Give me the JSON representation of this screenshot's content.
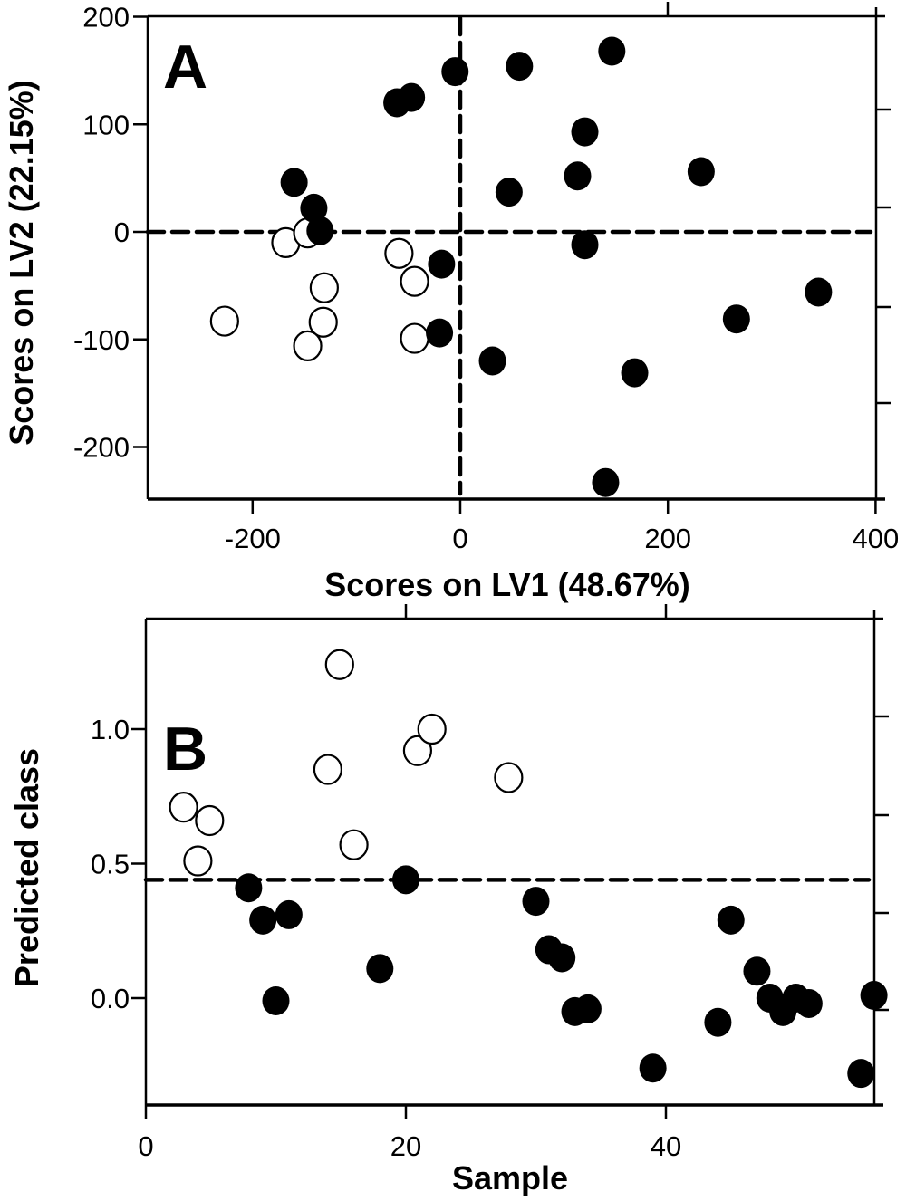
{
  "chart_data": [
    {
      "panel": "A",
      "type": "scatter",
      "title": "",
      "panel_label": "A",
      "xlabel": "Scores on LV1 (48.67%)",
      "ylabel": "Scores on LV2 (22.15%)",
      "xlim": [
        -300,
        400
      ],
      "ylim": [
        -250,
        200
      ],
      "xticks": [
        -200,
        0,
        200,
        400
      ],
      "xtick_labels": [
        "-200",
        "0",
        "200",
        "400"
      ],
      "yticks": [
        -200,
        -100,
        0,
        100,
        200
      ],
      "ytick_labels": [
        "-200",
        "-100",
        "0",
        "100",
        "200"
      ],
      "grid": false,
      "reference_lines": {
        "x": 0,
        "y": 0,
        "style": "dashed"
      },
      "series": [
        {
          "name": "open",
          "marker": "open-circle",
          "color": "#000000",
          "points": [
            [
              -168,
              -10
            ],
            [
              -147,
              -1
            ],
            [
              -227,
              -83
            ],
            [
              -131,
              -52
            ],
            [
              -132,
              -84
            ],
            [
              -147,
              -106
            ],
            [
              -59,
              -20
            ],
            [
              -44,
              -46
            ],
            [
              -44,
              -99
            ]
          ]
        },
        {
          "name": "filled",
          "marker": "filled-circle",
          "color": "#000000",
          "points": [
            [
              -160,
              46
            ],
            [
              -141,
              22
            ],
            [
              -135,
              1
            ],
            [
              -18,
              -30
            ],
            [
              -20,
              -94
            ],
            [
              -61,
              120
            ],
            [
              -47,
              125
            ],
            [
              -5,
              149
            ],
            [
              57,
              154
            ],
            [
              146,
              168
            ],
            [
              120,
              93
            ],
            [
              113,
              52
            ],
            [
              47,
              37
            ],
            [
              232,
              56
            ],
            [
              120,
              -12
            ],
            [
              31,
              -120
            ],
            [
              168,
              -131
            ],
            [
              266,
              -81
            ],
            [
              345,
              -56
            ],
            [
              140,
              -233
            ]
          ]
        }
      ]
    },
    {
      "panel": "B",
      "type": "scatter",
      "title": "",
      "panel_label": "B",
      "xlabel": "Sample",
      "ylabel": "Predicted class",
      "xlim": [
        0,
        56
      ],
      "ylim": [
        -0.4,
        1.41
      ],
      "xticks": [
        0,
        20,
        40
      ],
      "xtick_labels": [
        "0",
        "20",
        "40"
      ],
      "yticks": [
        0.0,
        0.5,
        1.0
      ],
      "ytick_labels": [
        "0.0",
        "0.5",
        "1.0"
      ],
      "grid": false,
      "reference_lines": {
        "y": 0.44,
        "style": "dashed"
      },
      "series": [
        {
          "name": "open",
          "marker": "open-circle",
          "color": "#000000",
          "points": [
            [
              2.9,
              0.71
            ],
            [
              4.9,
              0.66
            ],
            [
              4.0,
              0.51
            ],
            [
              14.9,
              1.24
            ],
            [
              14.0,
              0.85
            ],
            [
              16.0,
              0.57
            ],
            [
              20.9,
              0.92
            ],
            [
              22.0,
              1.0
            ],
            [
              27.9,
              0.82
            ]
          ]
        },
        {
          "name": "filled",
          "marker": "filled-circle",
          "color": "#000000",
          "points": [
            [
              7.9,
              0.41
            ],
            [
              9.0,
              0.29
            ],
            [
              11.0,
              0.31
            ],
            [
              10.0,
              -0.01
            ],
            [
              18.0,
              0.11
            ],
            [
              20.0,
              0.44
            ],
            [
              30.0,
              0.36
            ],
            [
              31.0,
              0.18
            ],
            [
              32.0,
              0.15
            ],
            [
              33.0,
              -0.05
            ],
            [
              34.0,
              -0.04
            ],
            [
              39.0,
              -0.26
            ],
            [
              44.0,
              -0.09
            ],
            [
              45.0,
              0.29
            ],
            [
              47.0,
              0.1
            ],
            [
              48.0,
              0.0
            ],
            [
              49.0,
              -0.05
            ],
            [
              50.0,
              0.0
            ],
            [
              51.0,
              -0.02
            ],
            [
              55.0,
              -0.28
            ],
            [
              56.0,
              0.01
            ]
          ]
        }
      ]
    }
  ]
}
